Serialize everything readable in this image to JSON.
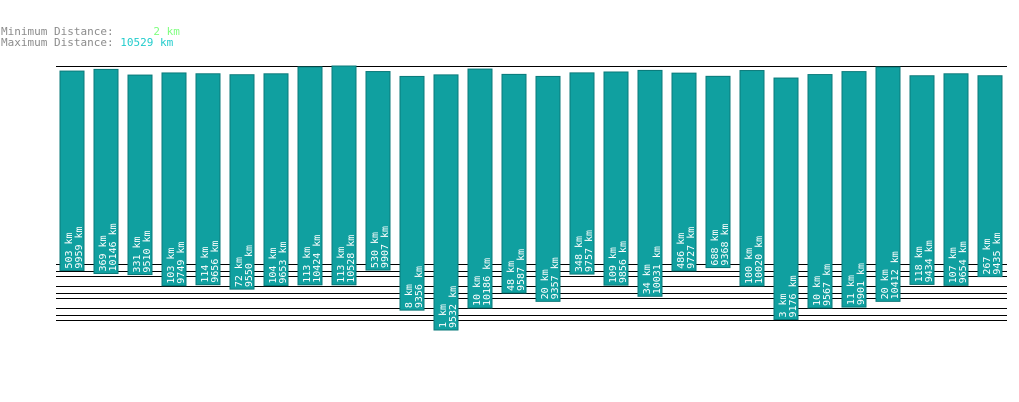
{
  "legend": {
    "min_label": "Minimum Distance:",
    "min_value": "2 km",
    "max_label": "Maximum Distance:",
    "max_value": "10529 km"
  },
  "colors": {
    "bar": "#10a0a0",
    "bar_stroke": "#0a7a7a",
    "grid": "#000000",
    "min_value": "#7fff7f",
    "max_value": "#22cccc",
    "label_gray": "#8c8c8c"
  },
  "chart_data": {
    "type": "bar",
    "series": [
      {
        "name": "min",
        "values": [
          503,
          369,
          331,
          103,
          114,
          72,
          104,
          113,
          113,
          530,
          8,
          1,
          10,
          48,
          20,
          348,
          109,
          34,
          486,
          688,
          100,
          3,
          10,
          11,
          20,
          118,
          107,
          267
        ]
      },
      {
        "name": "max",
        "values": [
          9959,
          10146,
          9510,
          9749,
          9656,
          9550,
          9653,
          10424,
          10528,
          9907,
          9356,
          9532,
          10186,
          9587,
          9357,
          9757,
          9856,
          10031,
          9727,
          9368,
          10020,
          9176,
          9567,
          9901,
          10412,
          9434,
          9654,
          9435
        ]
      }
    ],
    "unit": "km",
    "grid": true
  }
}
